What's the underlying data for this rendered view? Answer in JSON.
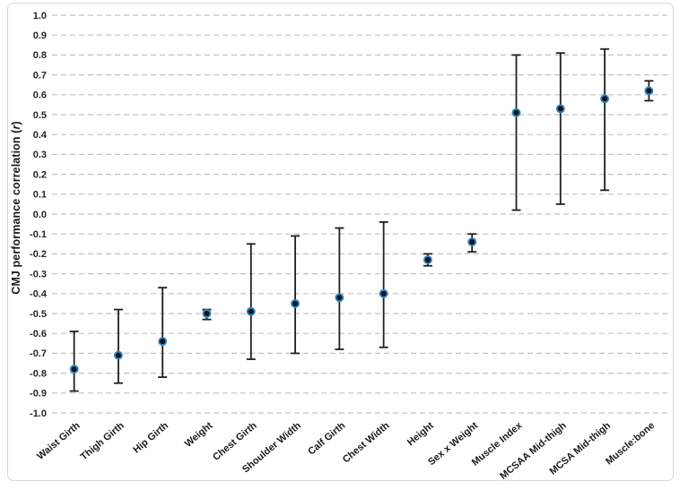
{
  "figure": {
    "background": "#ffffff",
    "border_color": "#d8d8d8"
  },
  "chart_data": {
    "type": "scatter",
    "title": "",
    "subtitle": "",
    "xlabel": "",
    "ylabel": "CMJ performance correlation (r)",
    "ylabel_parts": {
      "main": "CMJ performance correlation (",
      "italic": "r",
      "suffix": ")"
    },
    "ylim": [
      -1.0,
      1.0
    ],
    "ytick_step": 0.1,
    "y_tick_labels": [
      "1.0",
      "0.9",
      "0.8",
      "0.7",
      "0.6",
      "0.5",
      "0.4",
      "0.3",
      "0.2",
      "0.1",
      "0.0",
      "-0.1",
      "-0.2",
      "-0.3",
      "-0.4",
      "-0.5",
      "-0.6",
      "-0.7",
      "-0.8",
      "-0.9",
      "-1.0"
    ],
    "grid": "horizontal-dashed",
    "legend": "none",
    "categories": [
      "Waist Girth",
      "Thigh Girth",
      "Hip Girth",
      "Weight",
      "Chest Girth",
      "Shoulder Width",
      "Calf Girth",
      "Chest Width",
      "Height",
      "Sex x Weight",
      "Muscle Index",
      "MCSAA Mid-thigh",
      "MCSA Mid-thigh",
      "Muscle:bone"
    ],
    "series": [
      {
        "values": [
          -0.78,
          -0.71,
          -0.64,
          -0.5,
          -0.49,
          -0.45,
          -0.42,
          -0.4,
          -0.23,
          -0.14,
          0.51,
          0.53,
          0.58,
          0.62
        ],
        "ci_low": [
          -0.89,
          -0.85,
          -0.82,
          -0.53,
          -0.73,
          -0.7,
          -0.68,
          -0.67,
          -0.26,
          -0.19,
          0.02,
          0.05,
          0.12,
          0.57
        ],
        "ci_high": [
          -0.59,
          -0.48,
          -0.37,
          -0.48,
          -0.15,
          -0.11,
          -0.07,
          -0.04,
          -0.2,
          -0.1,
          0.8,
          0.81,
          0.83,
          0.67
        ]
      }
    ],
    "marker": {
      "fill": "#0b1220",
      "stroke": "#2e86c0"
    },
    "error_bar_color": "#1f1f1f",
    "gridline_color": "#c2c2c2",
    "tick_label_color": "#262626"
  }
}
